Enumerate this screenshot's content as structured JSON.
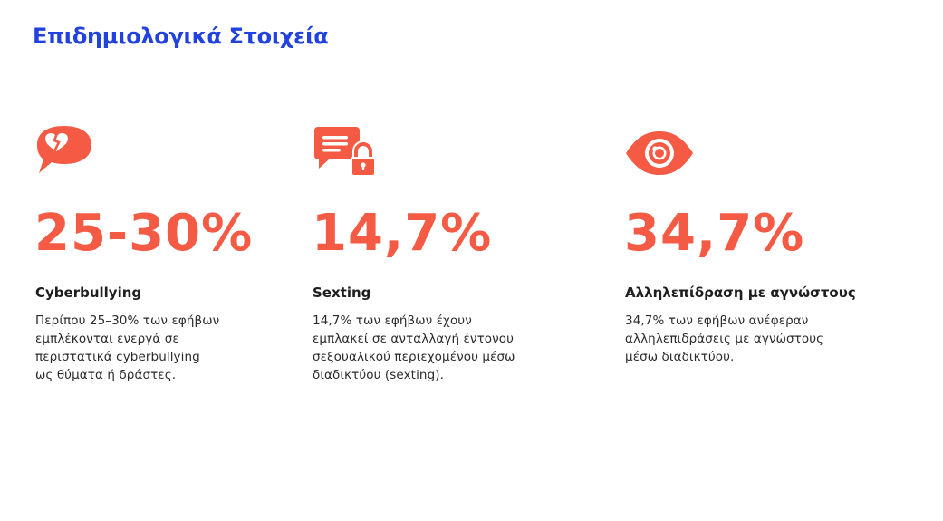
{
  "slide": {
    "title": "Επιδημιολογικά Στοιχεία"
  },
  "colors": {
    "title": "#2242e0",
    "accent": "#f45a44",
    "text": "#1e1e1e",
    "background": "#ffffff"
  },
  "stats": [
    {
      "icon": "broken-heart-speech-bubble-icon",
      "value": "25-30%",
      "heading": "Cyberbullying",
      "description_lines": [
        "Περίπου 25–30% των εφήβων",
        "εμπλέκονται ενεργά σε",
        "περιστατικά cyberbullying",
        "ως θύματα ή δράστες."
      ]
    },
    {
      "icon": "chat-lock-icon",
      "value": "14,7%",
      "heading": "Sexting",
      "description_lines": [
        "14,7% των εφήβων έχουν",
        "εμπλακεί σε ανταλλαγή έντονου",
        "σεξουαλικού περιεχομένου μέσω",
        "διαδικτύου (sexting)."
      ]
    },
    {
      "icon": "eye-icon",
      "value": "34,7%",
      "heading": "Αλληλεπίδραση με αγνώστους",
      "description_lines": [
        "34,7% των εφήβων ανέφεραν",
        "αλληλεπιδράσεις με αγνώστους",
        "μέσω διαδικτύου."
      ]
    }
  ]
}
